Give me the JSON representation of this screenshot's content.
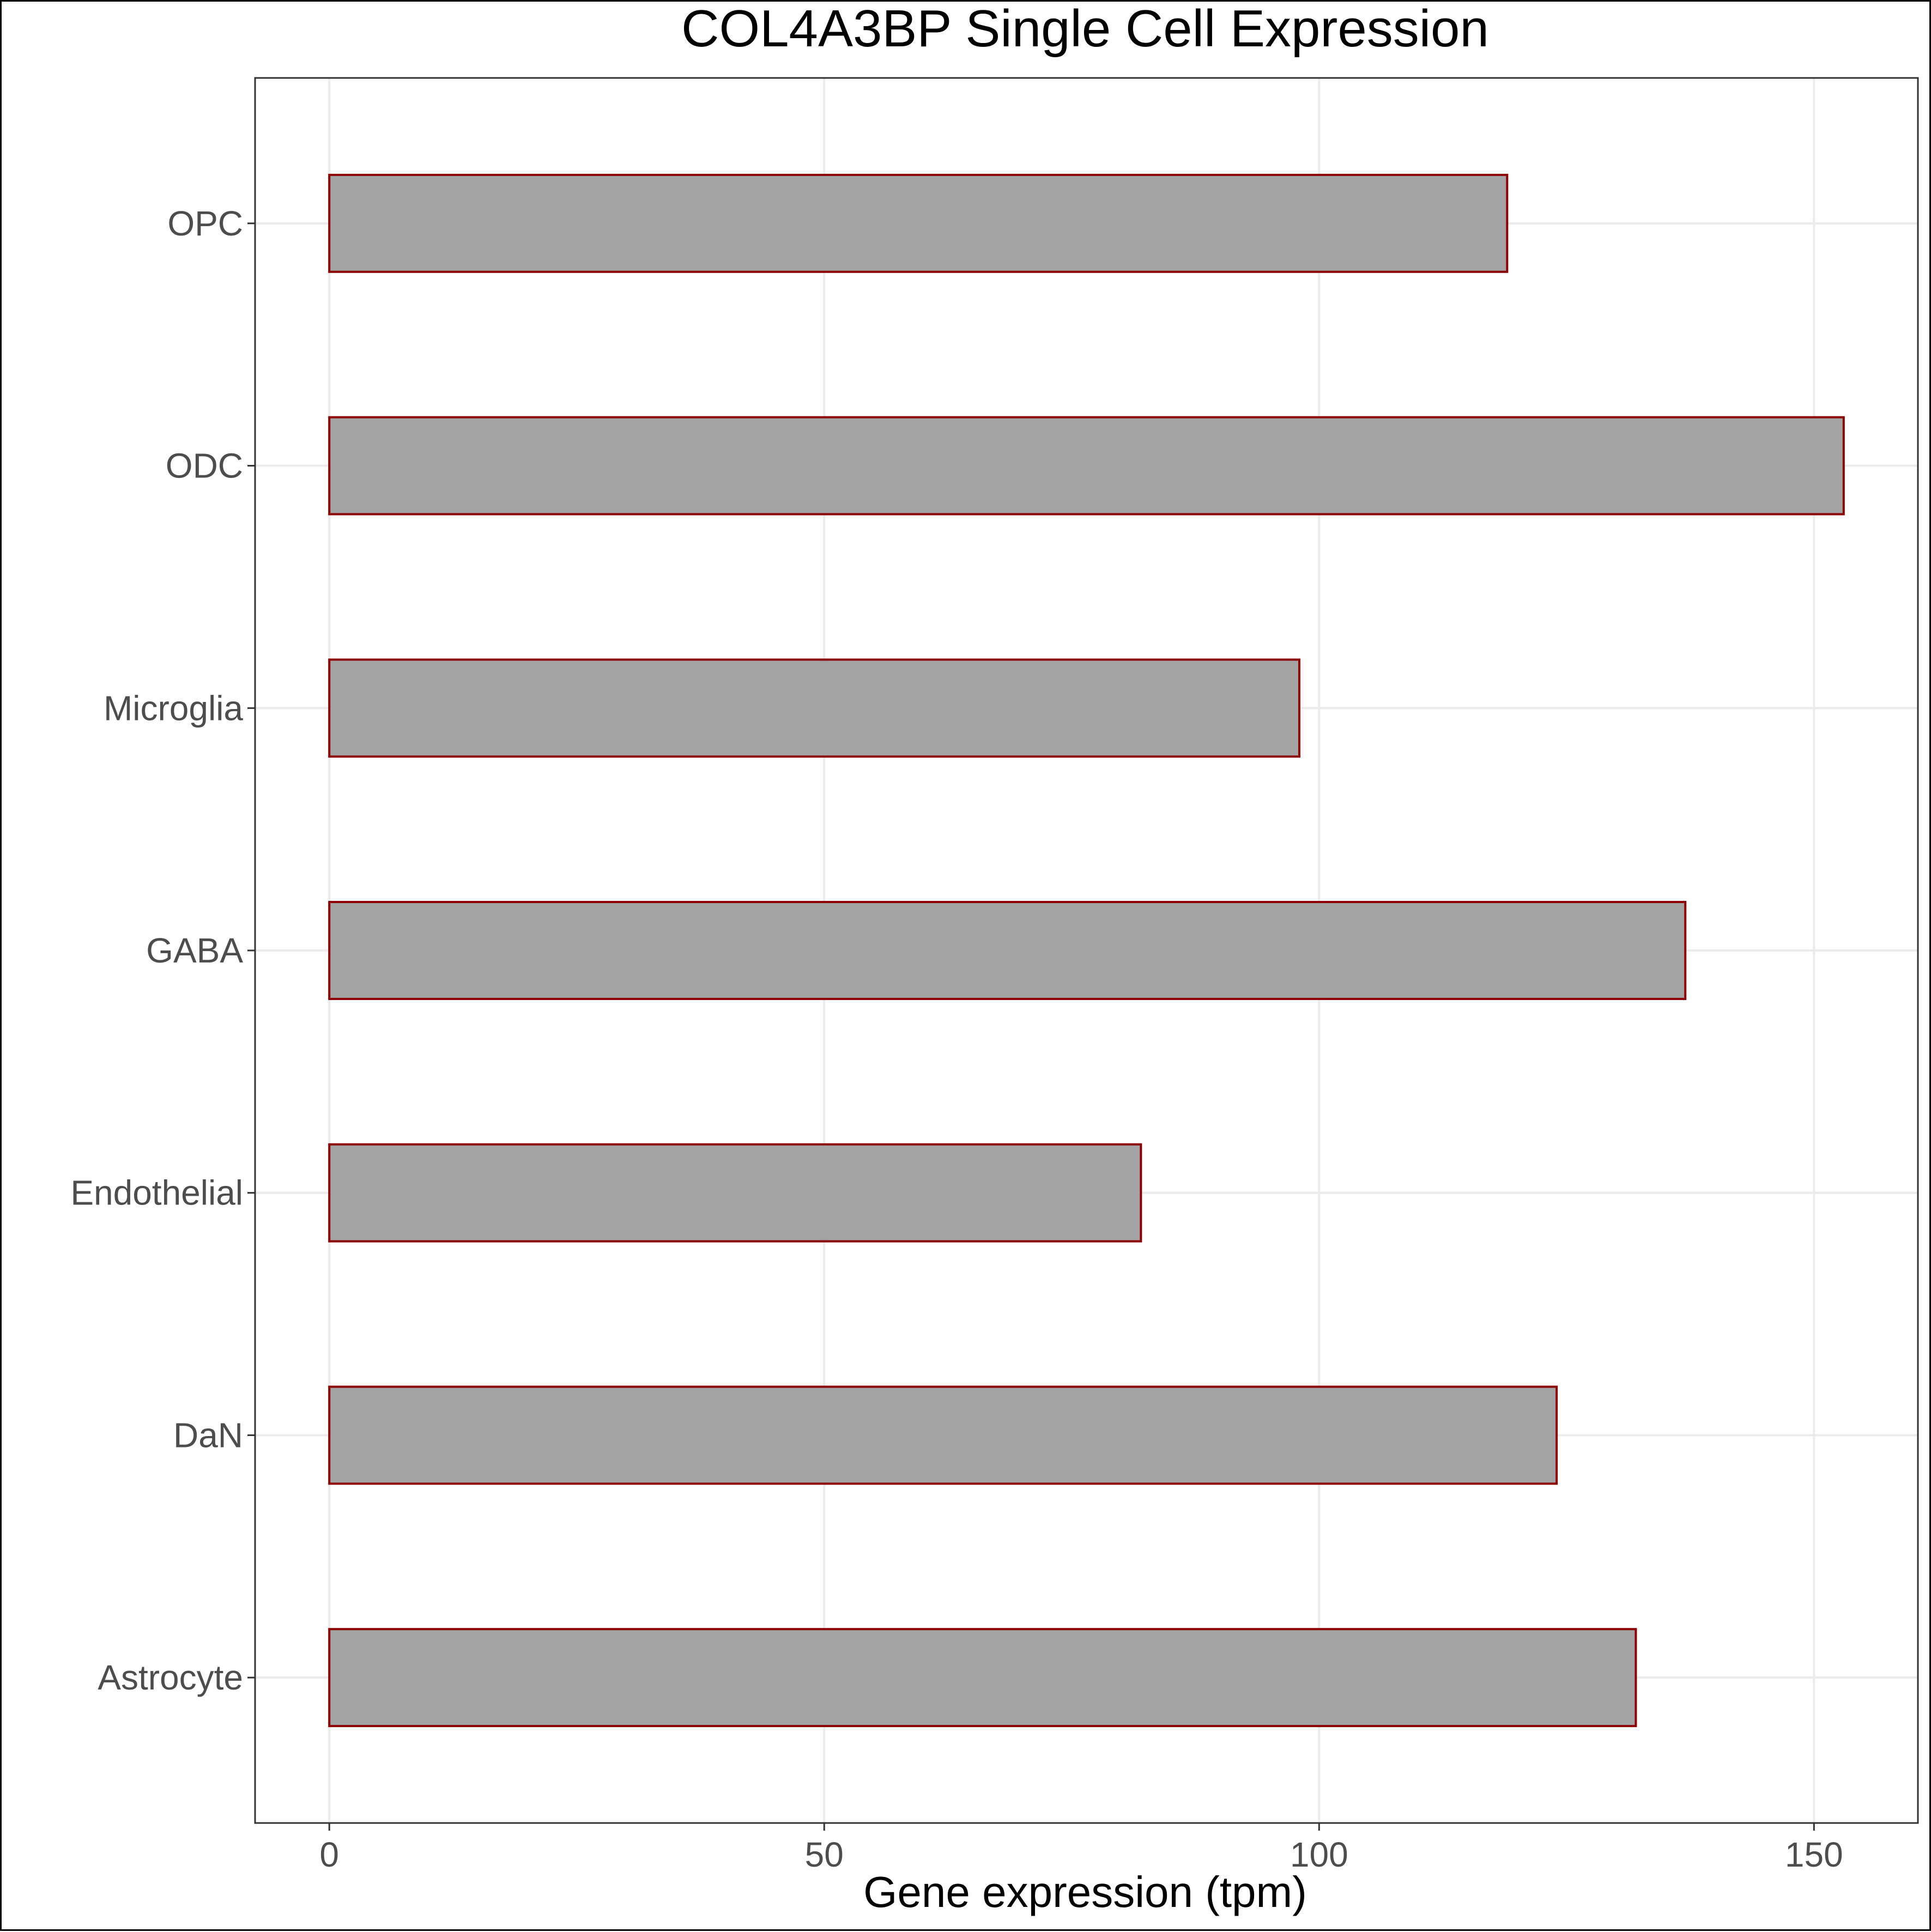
{
  "chart_data": {
    "type": "bar",
    "orientation": "horizontal",
    "title": "COL4A3BP Single Cell Expression",
    "xlabel": "Gene expression (tpm)",
    "ylabel": "",
    "categories": [
      "Astrocyte",
      "DaN",
      "Endothelial",
      "GABA",
      "Microglia",
      "ODC",
      "OPC"
    ],
    "values": [
      132,
      124,
      82,
      137,
      98,
      153,
      119
    ],
    "xlim": [
      -7.5,
      160.5
    ],
    "xticks": [
      0,
      50,
      100,
      150
    ],
    "xtick_labels": [
      "0",
      "50",
      "100",
      "150"
    ],
    "grid": true,
    "legend": "none",
    "colors": {
      "bar_fill": "#a3a3a3",
      "bar_outline": "#8b0000",
      "grid": "#ebebeb",
      "tick_text": "#4d4d4d",
      "panel_border": "#333333"
    }
  }
}
